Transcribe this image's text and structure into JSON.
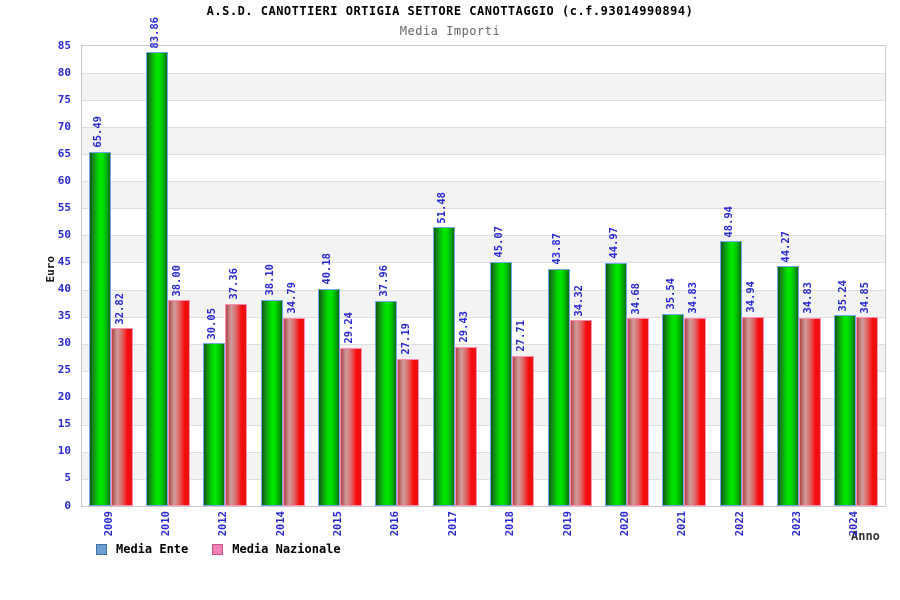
{
  "title": "A.S.D. CANOTTIERI ORTIGIA SETTORE CANOTTAGGIO (c.f.93014990894)",
  "subtitle": "Media Importi",
  "axes": {
    "y_title": "Euro",
    "x_title": "Anno",
    "y_min": 0,
    "y_max": 85,
    "y_step": 5
  },
  "legend": {
    "items": [
      {
        "label": "Media Ente",
        "swatch_color": "#6e9dd0",
        "swatch_border": "#3a72b0"
      },
      {
        "label": "Media Nazionale",
        "swatch_color": "#ee82b4",
        "swatch_border": "#cc5588"
      }
    ]
  },
  "colors": {
    "bar_ente_main": "#00d800",
    "bar_ente_border": "#74a7e8",
    "bar_nazionale_main": "#f90909",
    "bar_nazionale_border": "#ff8fb2",
    "label_text": "#2a2ad2",
    "grid_line": "#dedede",
    "band_shaded": "#f3f3f3",
    "plot_border": "#c9c9c9",
    "subtitle_text": "#666666"
  },
  "chart_data": {
    "type": "bar",
    "title": "Media Importi",
    "xlabel": "Anno",
    "ylabel": "Euro",
    "ylim": [
      0,
      85
    ],
    "grid": true,
    "legend_position": "bottom-left",
    "value_labels": "rotated-90, two decimals, above bars",
    "categories": [
      "2009",
      "2010",
      "2012",
      "2014",
      "2015",
      "2016",
      "2017",
      "2018",
      "2019",
      "2020",
      "2021",
      "2022",
      "2023",
      "2024"
    ],
    "series": [
      {
        "name": "Media Ente",
        "values": [
          65.49,
          83.86,
          30.05,
          38.1,
          40.18,
          37.96,
          51.48,
          45.07,
          43.87,
          44.97,
          35.54,
          48.94,
          44.27,
          35.24
        ]
      },
      {
        "name": "Media Nazionale",
        "values": [
          32.82,
          38.0,
          37.36,
          34.79,
          29.24,
          27.19,
          29.43,
          27.71,
          34.32,
          34.68,
          34.83,
          34.94,
          34.83,
          34.85
        ]
      }
    ]
  }
}
